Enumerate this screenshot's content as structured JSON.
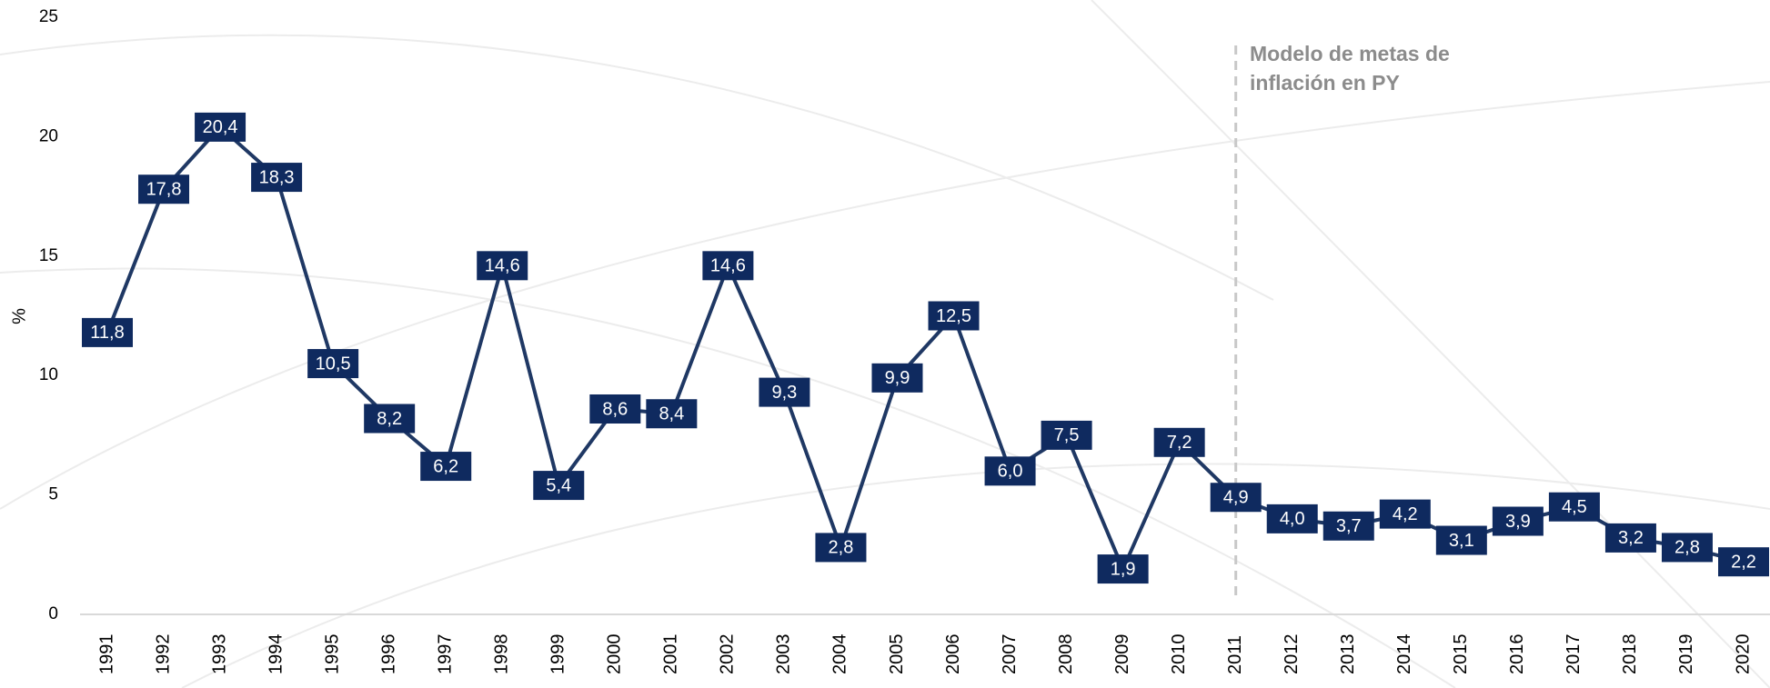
{
  "chart_data": {
    "type": "line",
    "y_label": "%",
    "annotation": [
      "Modelo de metas de",
      "inflación en PY"
    ],
    "categories": [
      "1991",
      "1992",
      "1993",
      "1994",
      "1995",
      "1996",
      "1997",
      "1998",
      "1999",
      "2000",
      "2001",
      "2002",
      "2003",
      "2004",
      "2005",
      "2006",
      "2007",
      "2008",
      "2009",
      "2010",
      "2011",
      "2012",
      "2013",
      "2014",
      "2015",
      "2016",
      "2017",
      "2018",
      "2019",
      "2020"
    ],
    "values": [
      11.8,
      17.8,
      20.4,
      18.3,
      10.5,
      8.2,
      6.2,
      14.6,
      5.4,
      8.6,
      8.4,
      14.6,
      9.3,
      2.8,
      9.9,
      12.5,
      6.0,
      7.5,
      1.9,
      7.2,
      4.9,
      4.0,
      3.7,
      4.2,
      3.1,
      3.9,
      4.5,
      3.2,
      2.8,
      2.2
    ],
    "value_labels": [
      "11,8",
      "17,8",
      "20,4",
      "18,3",
      "10,5",
      "8,2",
      "6,2",
      "14,6",
      "5,4",
      "8,6",
      "8,4",
      "14,6",
      "9,3",
      "2,8",
      "9,9",
      "12,5",
      "6,0",
      "7,5",
      "1,9",
      "7,2",
      "4,9",
      "4,0",
      "3,7",
      "4,2",
      "3,1",
      "3,9",
      "4,5",
      "3,2",
      "2,8",
      "2,2"
    ],
    "color": "#1f3864",
    "label_color": "#0f2a5f",
    "ylim": [
      0,
      25
    ],
    "yticks": [
      0,
      5,
      10,
      15,
      20,
      25
    ],
    "grid": false
  }
}
